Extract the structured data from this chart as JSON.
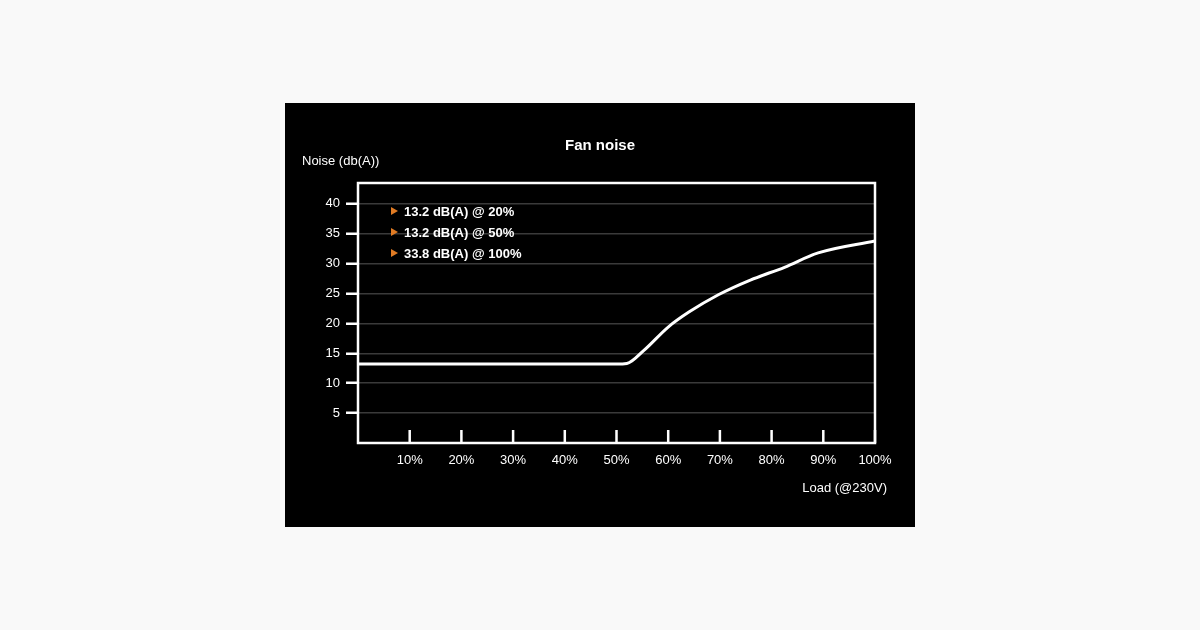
{
  "chart_data": {
    "type": "line",
    "title": "Fan noise",
    "xlabel": "Load (@230V)",
    "ylabel": "Noise (db(A))",
    "x": [
      0,
      10,
      20,
      30,
      40,
      50,
      52,
      55.3,
      60,
      64,
      69.7,
      76,
      82.5,
      89,
      100
    ],
    "series": [
      {
        "color": "#ffffff",
        "values": [
          13.2,
          13.2,
          13.2,
          13.2,
          13.2,
          13.2,
          13.3,
          15.5,
          19.4,
          21.9,
          24.8,
          27.3,
          29.4,
          31.8,
          33.8
        ]
      }
    ],
    "xlim": [
      0,
      100
    ],
    "ylim": [
      0,
      43.5
    ],
    "xticks": [
      {
        "value": 10,
        "label": "10%"
      },
      {
        "value": 20,
        "label": "20%"
      },
      {
        "value": 30,
        "label": "30%"
      },
      {
        "value": 40,
        "label": "40%"
      },
      {
        "value": 50,
        "label": "50%"
      },
      {
        "value": 60,
        "label": "60%"
      },
      {
        "value": 70,
        "label": "70%"
      },
      {
        "value": 80,
        "label": "80%"
      },
      {
        "value": 90,
        "label": "90%"
      },
      {
        "value": 100,
        "label": "100%"
      }
    ],
    "yticks": [
      5,
      10,
      15,
      20,
      25,
      30,
      35,
      40
    ],
    "annotations": [
      "13.2 dB(A) @ 20%",
      "13.2 dB(A) @ 50%",
      "33.8 dB(A) @ 100%"
    ],
    "grid": "y",
    "legend": false,
    "marker": "none",
    "line_style": "solid"
  }
}
